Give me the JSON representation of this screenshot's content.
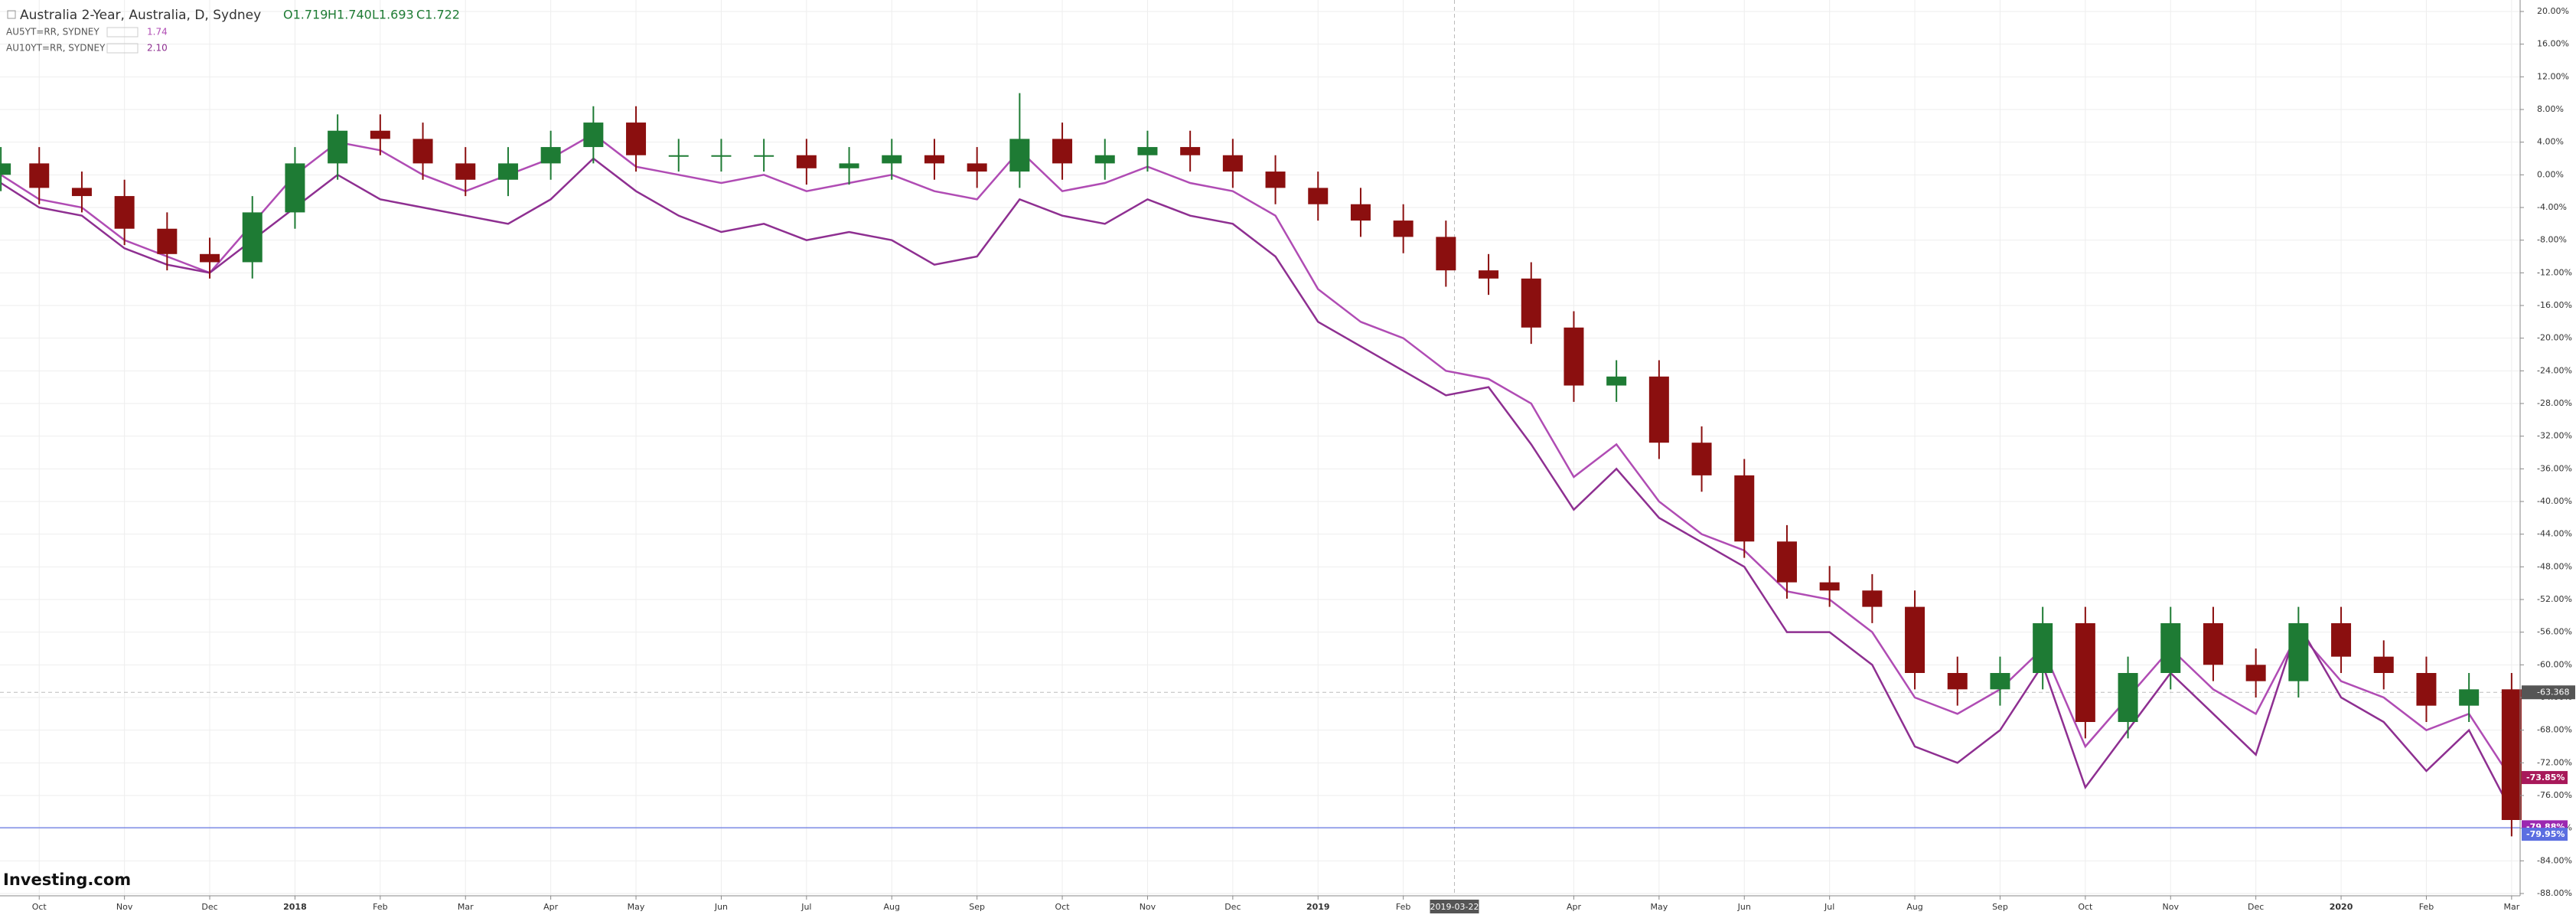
{
  "chart_data": {
    "type": "candlestick",
    "title": "Australia 2-Year, Australia, D, Sydney",
    "ohlc_legend": [
      "O1.719",
      "H1.740",
      "L1.693",
      "C1.722"
    ],
    "watermark": "Investing.com",
    "x": [
      -0.45,
      0,
      0.5,
      1,
      1.5,
      2,
      2.5,
      3,
      3.5,
      4,
      4.5,
      5,
      5.5,
      6,
      6.5,
      7,
      7.5,
      8,
      8.5,
      9,
      9.5,
      10,
      10.5,
      11,
      11.5,
      12,
      12.5,
      13,
      13.5,
      14,
      14.5,
      15,
      15.5,
      16,
      16.5,
      17,
      17.5,
      18,
      18.5,
      19,
      19.5,
      20,
      20.5,
      21,
      21.5,
      22,
      22.5,
      23,
      23.5,
      24,
      24.5,
      25,
      25.5,
      26,
      26.5,
      27,
      27.5,
      28,
      28.5,
      29
    ],
    "open": [
      0,
      1.4,
      -1.6,
      -2.6,
      -6.6,
      -9.7,
      -10.7,
      -4.6,
      1.4,
      5.4,
      4.4,
      1.4,
      -0.6,
      1.4,
      3.4,
      6.4,
      2.4,
      2.4,
      2.4,
      2.4,
      0.8,
      1.4,
      2.4,
      1.4,
      0.4,
      4.4,
      1.4,
      2.4,
      3.4,
      2.4,
      0.4,
      -1.6,
      -3.6,
      -5.6,
      -7.6,
      -11.7,
      -12.7,
      -18.7,
      -25.8,
      -24.7,
      -32.8,
      -36.8,
      -44.9,
      -49.9,
      -50.9,
      -52.9,
      -61,
      -63,
      -61,
      -54.9,
      -67,
      -61,
      -54.9,
      -60,
      -62,
      -54.9,
      -59,
      -61,
      -65,
      -63
    ],
    "high": [
      3.4,
      3.4,
      0.4,
      -0.6,
      -4.6,
      -7.7,
      -2.6,
      3.4,
      7.4,
      7.4,
      6.4,
      3.4,
      3.4,
      5.4,
      8.4,
      8.4,
      4.4,
      4.4,
      4.4,
      4.4,
      3.4,
      4.4,
      4.4,
      3.4,
      10,
      6.4,
      4.4,
      5.4,
      5.4,
      4.4,
      2.4,
      0.4,
      -1.6,
      -3.6,
      -5.6,
      -9.7,
      -10.7,
      -16.7,
      -22.7,
      -22.7,
      -30.8,
      -34.8,
      -42.9,
      -47.9,
      -48.9,
      -50.9,
      -59,
      -59,
      -52.9,
      -52.9,
      -59,
      -52.9,
      -52.9,
      -58,
      -52.9,
      -52.9,
      -57,
      -59,
      -61,
      -61
    ],
    "low": [
      -2,
      -3.6,
      -4.6,
      -8.6,
      -11.7,
      -12.7,
      -12.7,
      -6.6,
      -0.6,
      2.4,
      -0.6,
      -2.6,
      -2.6,
      -0.6,
      1.4,
      0.4,
      0.4,
      0.4,
      0.4,
      -1.2,
      -1.2,
      -0.6,
      -0.6,
      -1.6,
      -1.6,
      -0.6,
      -0.6,
      0.4,
      0.4,
      -1.6,
      -3.6,
      -5.6,
      -7.6,
      -9.6,
      -13.7,
      -14.7,
      -20.7,
      -27.8,
      -27.8,
      -34.8,
      -38.8,
      -46.9,
      -51.9,
      -52.9,
      -54.9,
      -63,
      -65,
      -65,
      -63,
      -69,
      -69,
      -63,
      -62,
      -64,
      -64,
      -61,
      -63,
      -67,
      -67,
      -81
    ],
    "close": [
      1.4,
      -1.6,
      -2.6,
      -6.6,
      -9.7,
      -10.7,
      -4.6,
      1.4,
      5.4,
      4.4,
      1.4,
      -0.6,
      1.4,
      3.4,
      6.4,
      2.4,
      2.4,
      2.4,
      2.4,
      0.8,
      1.4,
      2.4,
      1.4,
      0.4,
      4.4,
      1.4,
      2.4,
      3.4,
      2.4,
      0.4,
      -1.6,
      -3.6,
      -5.6,
      -7.6,
      -11.7,
      -12.7,
      -18.7,
      -25.8,
      -24.7,
      -32.8,
      -36.8,
      -44.9,
      -49.9,
      -50.9,
      -52.9,
      -61,
      -63,
      -61,
      -54.9,
      -67,
      -61,
      -54.9,
      -60,
      -62,
      -54.9,
      -59,
      -61,
      -65,
      -63,
      -79
    ],
    "up_color": "#1e7b34",
    "down_color": "#8b0f0f",
    "series": [
      {
        "name": "AU5YT=RR, SYDNEY",
        "legend_value": "1.74",
        "color": "#b04cb4",
        "values": [
          0,
          -3,
          -4,
          -8,
          -10,
          -12,
          -6,
          0,
          4,
          3,
          0,
          -2,
          0,
          2,
          5,
          1,
          0,
          -1,
          0,
          -2,
          -1,
          0,
          -2,
          -3,
          3,
          -2,
          -1,
          1,
          -1,
          -2,
          -5,
          -14,
          -18,
          -20,
          -24,
          -25,
          -28,
          -37,
          -33,
          -40,
          -44,
          -46,
          -51,
          -52,
          -56,
          -64,
          -66,
          -63,
          -58,
          -70,
          -64,
          -58,
          -63,
          -66,
          -56,
          -62,
          -64,
          -68,
          -66,
          -74
        ]
      },
      {
        "name": "AU10YT=RR, SYDNEY",
        "legend_value": "2.10",
        "color": "#8e2f91",
        "values": [
          -1,
          -4,
          -5,
          -9,
          -11,
          -12,
          -8,
          -4,
          0,
          -3,
          -4,
          -5,
          -6,
          -3,
          2,
          -2,
          -5,
          -7,
          -6,
          -8,
          -7,
          -8,
          -11,
          -10,
          -3,
          -5,
          -6,
          -3,
          -5,
          -6,
          -10,
          -18,
          -21,
          -24,
          -27,
          -26,
          -33,
          -41,
          -36,
          -42,
          -45,
          -48,
          -56,
          -56,
          -60,
          -70,
          -72,
          -68,
          -60,
          -75,
          -68,
          -61,
          -66,
          -71,
          -55,
          -64,
          -67,
          -73,
          -68,
          -78
        ]
      }
    ],
    "xlim": [
      -0.46,
      29.1
    ],
    "xticks": [
      {
        "value": 0,
        "label": "Oct"
      },
      {
        "value": 1,
        "label": "Nov"
      },
      {
        "value": 2,
        "label": "Dec"
      },
      {
        "value": 3,
        "label": "2018"
      },
      {
        "value": 4,
        "label": "Feb"
      },
      {
        "value": 5,
        "label": "Mar"
      },
      {
        "value": 6,
        "label": "Apr"
      },
      {
        "value": 7,
        "label": "May"
      },
      {
        "value": 8,
        "label": "Jun"
      },
      {
        "value": 9,
        "label": "Jul"
      },
      {
        "value": 10,
        "label": "Aug"
      },
      {
        "value": 11,
        "label": "Sep"
      },
      {
        "value": 12,
        "label": "Oct"
      },
      {
        "value": 13,
        "label": "Nov"
      },
      {
        "value": 14,
        "label": "Dec"
      },
      {
        "value": 15,
        "label": "2019"
      },
      {
        "value": 16,
        "label": "Feb"
      },
      {
        "value": 18,
        "label": "Apr"
      },
      {
        "value": 19,
        "label": "May"
      },
      {
        "value": 20,
        "label": "Jun"
      },
      {
        "value": 21,
        "label": "Jul"
      },
      {
        "value": 22,
        "label": "Aug"
      },
      {
        "value": 23,
        "label": "Sep"
      },
      {
        "value": 24,
        "label": "Oct"
      },
      {
        "value": 25,
        "label": "Nov"
      },
      {
        "value": 26,
        "label": "Dec"
      },
      {
        "value": 27,
        "label": "2020"
      },
      {
        "value": 28,
        "label": "Feb"
      },
      {
        "value": 29,
        "label": "Mar"
      }
    ],
    "ylim": [
      20,
      -88
    ],
    "yticks": [
      {
        "value": 20,
        "label": "20.00%"
      },
      {
        "value": 16,
        "label": "16.00%"
      },
      {
        "value": 12,
        "label": "12.00%"
      },
      {
        "value": 8,
        "label": "8.00%"
      },
      {
        "value": 4,
        "label": "4.00%"
      },
      {
        "value": 0,
        "label": "0.00%"
      },
      {
        "value": -4,
        "label": "-4.00%"
      },
      {
        "value": -8,
        "label": "-8.00%"
      },
      {
        "value": -12,
        "label": "-12.00%"
      },
      {
        "value": -16,
        "label": "-16.00%"
      },
      {
        "value": -20,
        "label": "-20.00%"
      },
      {
        "value": -24,
        "label": "-24.00%"
      },
      {
        "value": -28,
        "label": "-28.00%"
      },
      {
        "value": -32,
        "label": "-32.00%"
      },
      {
        "value": -36,
        "label": "-36.00%"
      },
      {
        "value": -40,
        "label": "-40.00%"
      },
      {
        "value": -44,
        "label": "-44.00%"
      },
      {
        "value": -48,
        "label": "-48.00%"
      },
      {
        "value": -52,
        "label": "-52.00%"
      },
      {
        "value": -56,
        "label": "-56.00%"
      },
      {
        "value": -60,
        "label": "-60.00%"
      },
      {
        "value": -64,
        "label": "-64.00%"
      },
      {
        "value": -68,
        "label": "-68.00%"
      },
      {
        "value": -72,
        "label": "-72.00%"
      },
      {
        "value": -76,
        "label": "-76.00%"
      },
      {
        "value": -80,
        "label": "-80.00%"
      },
      {
        "value": -84,
        "label": "-84.00%"
      },
      {
        "value": -88,
        "label": "-88.00%"
      }
    ],
    "grid": true,
    "price_labels": [
      {
        "value": -73.85,
        "label": "-73.85%",
        "color": "#a8195a"
      },
      {
        "value": -79.88,
        "label": "-79.88%",
        "color": "#9c27b0"
      },
      {
        "value": -79.95,
        "label": "-79.95%",
        "color": "#5b6ee1"
      }
    ],
    "crosshair": {
      "x": 16.6,
      "x_label": "2019-03-22",
      "y": -63.368
    }
  }
}
